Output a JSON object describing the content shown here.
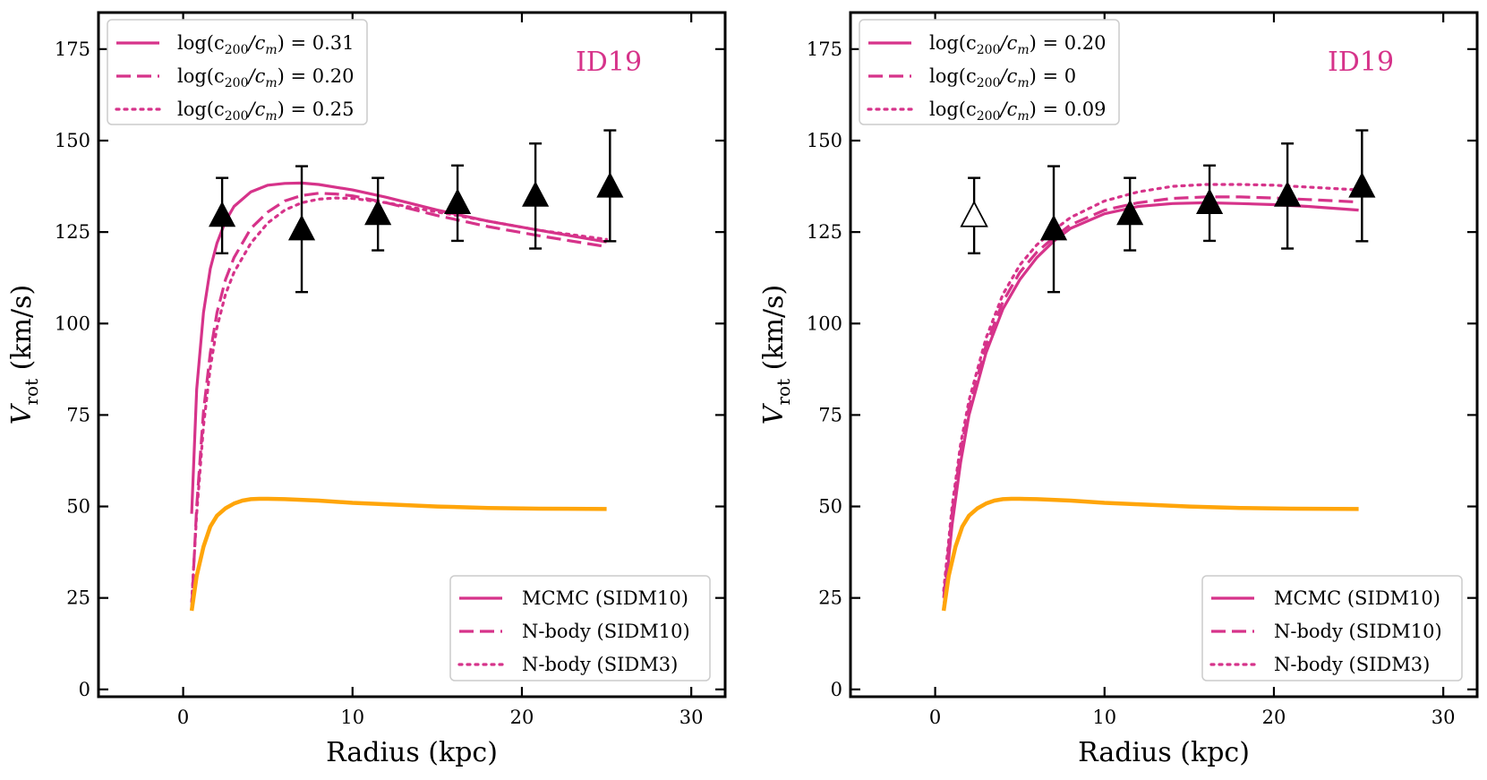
{
  "colors": {
    "pink": "#d6338a",
    "orange": "#ffa50a",
    "black": "#000000"
  },
  "chart_data": [
    {
      "type": "line",
      "annotation": "ID19",
      "xlabel": "Radius (kpc)",
      "ylabel_main": "V",
      "ylabel_sub": "rot",
      "ylabel_unit": "(km/s)",
      "xlim": [
        -5,
        32
      ],
      "ylim": [
        -2,
        185
      ],
      "xticks": [
        0,
        10,
        20,
        30
      ],
      "yticks": [
        0,
        25,
        50,
        75,
        100,
        125,
        150,
        175
      ],
      "legend_upper": [
        {
          "style": "solid",
          "prefix": "log(c",
          "sub": "200",
          "mid": "/c",
          "sub2": "m",
          "suffix": ") = 0.31"
        },
        {
          "style": "dashed",
          "prefix": "log(c",
          "sub": "200",
          "mid": "/c",
          "sub2": "m",
          "suffix": ") = 0.20"
        },
        {
          "style": "dotted",
          "prefix": "log(c",
          "sub": "200",
          "mid": "/c",
          "sub2": "m",
          "suffix": ") = 0.25"
        }
      ],
      "legend_lower": [
        {
          "style": "solid",
          "label": "MCMC (SIDM10)"
        },
        {
          "style": "dashed",
          "label": "N-body (SIDM10)"
        },
        {
          "style": "dotted",
          "label": "N-body (SIDM3)"
        }
      ],
      "series": [
        {
          "name": "MCMC (SIDM10)",
          "style": "solid",
          "color": "pink",
          "x": [
            0.5,
            0.8,
            1.2,
            1.6,
            2.0,
            2.5,
            3.0,
            4.0,
            5.0,
            6.0,
            7.0,
            8.0,
            10.0,
            12.0,
            15.0,
            18.0,
            21.0,
            25.0
          ],
          "y": [
            48,
            82,
            103,
            115,
            122,
            128,
            132,
            136,
            137.8,
            138.3,
            138.4,
            138.0,
            136.5,
            134.5,
            131.0,
            128.0,
            125.5,
            122.3
          ]
        },
        {
          "name": "N-body (SIDM10)",
          "style": "dashed",
          "color": "pink",
          "x": [
            0.5,
            0.8,
            1.2,
            1.6,
            2.0,
            2.5,
            3.0,
            4.0,
            5.0,
            6.0,
            7.0,
            8.0,
            9.0,
            10.0,
            12.0,
            15.0,
            18.0,
            21.0,
            25.0
          ],
          "y": [
            22,
            50,
            76,
            92,
            103,
            112,
            118,
            126,
            130.5,
            133.5,
            135.0,
            135.6,
            135.4,
            134.9,
            133.0,
            129.5,
            126.5,
            124.0,
            121.0
          ]
        },
        {
          "name": "N-body (SIDM3)",
          "style": "dotted",
          "color": "pink",
          "x": [
            0.5,
            0.8,
            1.2,
            1.6,
            2.0,
            2.5,
            3.0,
            4.0,
            5.0,
            6.0,
            7.0,
            8.0,
            9.0,
            10.0,
            12.0,
            15.0,
            18.0,
            21.0,
            25.0
          ],
          "y": [
            24,
            48,
            72,
            88,
            99,
            108,
            114,
            122,
            127.5,
            131.0,
            133.0,
            134.0,
            134.3,
            134.2,
            133.0,
            130.5,
            128.0,
            125.5,
            123.0
          ]
        },
        {
          "name": "baryons",
          "style": "solid-thick",
          "color": "orange",
          "x": [
            0.5,
            0.8,
            1.2,
            1.6,
            2.0,
            2.5,
            3.0,
            3.5,
            4.0,
            4.5,
            5.0,
            6.0,
            8.0,
            10.0,
            12.0,
            15.0,
            18.0,
            21.0,
            25.0
          ],
          "y": [
            21.5,
            31,
            39,
            44.5,
            47.5,
            49.5,
            50.8,
            51.6,
            52.0,
            52.1,
            52.1,
            52.0,
            51.6,
            51.0,
            50.6,
            50.0,
            49.6,
            49.4,
            49.3
          ]
        }
      ],
      "observed": {
        "x": [
          2.3,
          7.0,
          11.5,
          16.2,
          20.8,
          25.2
        ],
        "y": [
          129.5,
          125.8,
          130.0,
          133.0,
          135.0,
          137.5
        ],
        "err_lo": [
          10.3,
          17.2,
          10.0,
          10.4,
          14.5,
          15.0
        ],
        "err_hi": [
          10.3,
          17.2,
          9.8,
          10.2,
          14.2,
          15.3
        ],
        "hollow": [
          false,
          false,
          false,
          false,
          false,
          false
        ]
      }
    },
    {
      "type": "line",
      "annotation": "ID19",
      "xlabel": "Radius (kpc)",
      "ylabel_main": "V",
      "ylabel_sub": "rot",
      "ylabel_unit": "(km/s)",
      "xlim": [
        -5,
        32
      ],
      "ylim": [
        -2,
        185
      ],
      "xticks": [
        0,
        10,
        20,
        30
      ],
      "yticks": [
        0,
        25,
        50,
        75,
        100,
        125,
        150,
        175
      ],
      "legend_upper": [
        {
          "style": "solid",
          "prefix": "log(c",
          "sub": "200",
          "mid": "/c",
          "sub2": "m",
          "suffix": ") = 0.20"
        },
        {
          "style": "dashed",
          "prefix": "log(c",
          "sub": "200",
          "mid": "/c",
          "sub2": "m",
          "suffix": ") = 0"
        },
        {
          "style": "dotted",
          "prefix": "log(c",
          "sub": "200",
          "mid": "/c",
          "sub2": "m",
          "suffix": ") = 0.09"
        }
      ],
      "legend_lower": [
        {
          "style": "solid",
          "label": "MCMC (SIDM10)"
        },
        {
          "style": "dashed",
          "label": "N-body (SIDM10)"
        },
        {
          "style": "dotted",
          "label": "N-body (SIDM3)"
        }
      ],
      "series": [
        {
          "name": "MCMC (SIDM10)",
          "style": "solid",
          "color": "pink",
          "x": [
            0.5,
            1.0,
            1.5,
            2.0,
            3.0,
            4.0,
            5.0,
            6.0,
            7.0,
            8.0,
            10.0,
            12.0,
            14.0,
            16.0,
            18.0,
            20.0,
            22.0,
            25.0
          ],
          "y": [
            22,
            45,
            62,
            75,
            92,
            104,
            112,
            118,
            122.5,
            126,
            130,
            132,
            132.8,
            133.0,
            132.8,
            132.5,
            132.0,
            131.0
          ]
        },
        {
          "name": "N-body (SIDM10)",
          "style": "dashed",
          "color": "pink",
          "x": [
            0.5,
            1.0,
            1.5,
            2.0,
            3.0,
            4.0,
            5.0,
            6.0,
            7.0,
            8.0,
            10.0,
            12.0,
            14.0,
            16.0,
            18.0,
            20.0,
            22.0,
            25.0
          ],
          "y": [
            25,
            48,
            65,
            77,
            94,
            106,
            114,
            119.5,
            123.5,
            127,
            131,
            133,
            134.2,
            134.6,
            134.6,
            134.3,
            133.9,
            133.2
          ]
        },
        {
          "name": "N-body (SIDM3)",
          "style": "dotted",
          "color": "pink",
          "x": [
            0.5,
            1.0,
            1.5,
            2.0,
            3.0,
            4.0,
            5.0,
            6.0,
            7.0,
            8.0,
            10.0,
            12.0,
            14.0,
            16.0,
            18.0,
            20.0,
            22.0,
            25.0
          ],
          "y": [
            27,
            50,
            67,
            79,
            96,
            108,
            116,
            121.5,
            125.5,
            129,
            133.5,
            136,
            137.5,
            138.0,
            138.0,
            137.8,
            137.3,
            136.5
          ]
        },
        {
          "name": "baryons",
          "style": "solid-thick",
          "color": "orange",
          "x": [
            0.5,
            0.8,
            1.2,
            1.6,
            2.0,
            2.5,
            3.0,
            3.5,
            4.0,
            4.5,
            5.0,
            6.0,
            8.0,
            10.0,
            12.0,
            15.0,
            18.0,
            21.0,
            25.0
          ],
          "y": [
            21.5,
            31,
            39,
            44.5,
            47.5,
            49.5,
            50.8,
            51.6,
            52.0,
            52.1,
            52.1,
            52.0,
            51.6,
            51.0,
            50.6,
            50.0,
            49.6,
            49.4,
            49.3
          ]
        }
      ],
      "observed": {
        "x": [
          2.3,
          7.0,
          11.5,
          16.2,
          20.8,
          25.2
        ],
        "y": [
          129.5,
          125.8,
          130.0,
          133.0,
          135.0,
          137.5
        ],
        "err_lo": [
          10.3,
          17.2,
          10.0,
          10.4,
          14.5,
          15.0
        ],
        "err_hi": [
          10.3,
          17.2,
          9.8,
          10.2,
          14.2,
          15.3
        ],
        "hollow": [
          true,
          false,
          false,
          false,
          false,
          false
        ]
      }
    }
  ]
}
